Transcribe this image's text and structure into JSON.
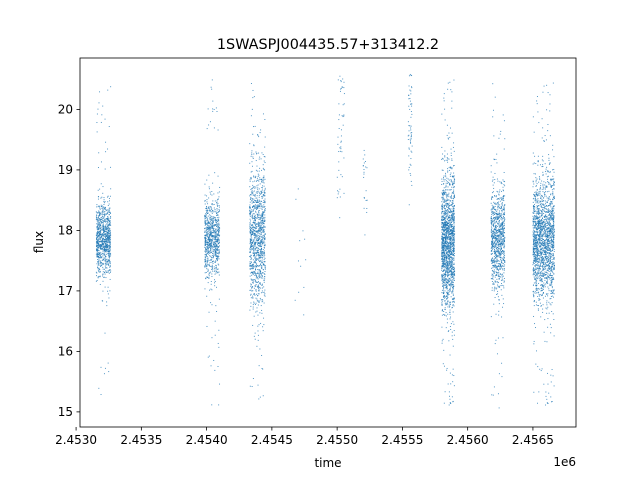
{
  "chart_data": {
    "type": "scatter",
    "title": "1SWASPJ004435.57+313412.2",
    "xlabel": "time",
    "ylabel": "flux",
    "x_offset_label": "1e6",
    "xlim": [
      2453030,
      2456830
    ],
    "ylim": [
      14.75,
      20.85
    ],
    "x_ticks": [
      2453000,
      2453500,
      2454000,
      2454500,
      2455000,
      2455500,
      2456000,
      2456500
    ],
    "x_tick_labels": [
      "2.4530",
      "2.4535",
      "2.4540",
      "2.4545",
      "2.4550",
      "2.4555",
      "2.4560",
      "2.4565"
    ],
    "y_ticks": [
      15,
      16,
      17,
      18,
      19,
      20
    ],
    "y_tick_labels": [
      "15",
      "16",
      "17",
      "18",
      "19",
      "20"
    ],
    "grid": false,
    "legend": "none",
    "color": "#1f77b4",
    "series": [
      {
        "clusters": [
          {
            "x_start": 2453155,
            "x_end": 2453265,
            "y_center": 17.85,
            "y_sd": 0.3,
            "y_min": 15.2,
            "y_max": 20.45,
            "count": 900
          },
          {
            "x_start": 2453985,
            "x_end": 2454100,
            "y_center": 17.85,
            "y_sd": 0.32,
            "y_min": 15.1,
            "y_max": 20.5,
            "count": 800
          },
          {
            "x_start": 2454330,
            "x_end": 2454450,
            "y_center": 17.9,
            "y_sd": 0.55,
            "y_min": 15.15,
            "y_max": 20.55,
            "count": 1100
          },
          {
            "x_start": 2454660,
            "x_end": 2454760,
            "y_center": 17.9,
            "y_sd": 0.6,
            "y_min": 16.45,
            "y_max": 19.0,
            "count": 12
          },
          {
            "x_start": 2455000,
            "x_end": 2455060,
            "y_center": 19.6,
            "y_sd": 0.7,
            "y_min": 17.9,
            "y_max": 20.6,
            "count": 50
          },
          {
            "x_start": 2455200,
            "x_end": 2455230,
            "y_center": 18.8,
            "y_sd": 0.5,
            "y_min": 17.9,
            "y_max": 19.4,
            "count": 22
          },
          {
            "x_start": 2455545,
            "x_end": 2455575,
            "y_center": 19.8,
            "y_sd": 0.6,
            "y_min": 18.2,
            "y_max": 20.6,
            "count": 60
          },
          {
            "x_start": 2455800,
            "x_end": 2455900,
            "y_center": 17.8,
            "y_sd": 0.55,
            "y_min": 15.05,
            "y_max": 20.5,
            "count": 1600
          },
          {
            "x_start": 2456180,
            "x_end": 2456285,
            "y_center": 17.85,
            "y_sd": 0.4,
            "y_min": 15.0,
            "y_max": 20.55,
            "count": 900
          },
          {
            "x_start": 2456500,
            "x_end": 2456665,
            "y_center": 17.85,
            "y_sd": 0.5,
            "y_min": 15.05,
            "y_max": 20.45,
            "count": 1800
          }
        ]
      }
    ]
  }
}
